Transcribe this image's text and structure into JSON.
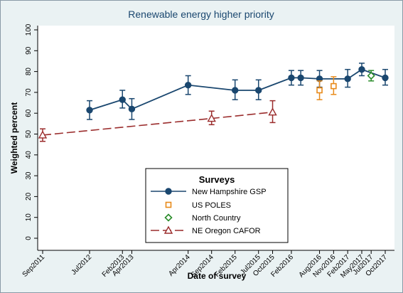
{
  "chart_data": {
    "type": "line",
    "title": "Renewable energy higher priority",
    "xlabel": "Date of survey",
    "ylabel": "Weighted percent",
    "ylim": [
      0,
      100
    ],
    "yticks": [
      0,
      10,
      20,
      30,
      40,
      50,
      60,
      70,
      80,
      90,
      100
    ],
    "x_range": [
      "2011-09",
      "2017-10"
    ],
    "xticks": [
      {
        "date": "2011-09",
        "label": "Sep2011"
      },
      {
        "date": "2012-07",
        "label": "Jul2012"
      },
      {
        "date": "2013-02",
        "label": "Feb2013"
      },
      {
        "date": "2013-04",
        "label": "Apr2013"
      },
      {
        "date": "2014-04",
        "label": "Apr2014"
      },
      {
        "date": "2014-09",
        "label": "Sep2014"
      },
      {
        "date": "2015-02",
        "label": "Feb2015"
      },
      {
        "date": "2015-07",
        "label": "Jul2015"
      },
      {
        "date": "2015-10",
        "label": "Oct2015"
      },
      {
        "date": "2016-02",
        "label": "Feb2016"
      },
      {
        "date": "2016-08",
        "label": "Aug2016"
      },
      {
        "date": "2016-11",
        "label": "Nov2016"
      },
      {
        "date": "2017-02",
        "label": "Feb2017"
      },
      {
        "date": "2017-05",
        "label": "May2017"
      },
      {
        "date": "2017-07",
        "label": "Jul2017"
      },
      {
        "date": "2017-10",
        "label": "Oct2017"
      }
    ],
    "grid": false,
    "legend_placement": "bottom-center",
    "legend_title": "Surveys",
    "series": [
      {
        "name": "New Hampshire GSP",
        "color": "#1a476f",
        "marker": "filled-circle",
        "line": "solid",
        "points": [
          {
            "x": "2012-07",
            "y": 61.5,
            "lo": 57,
            "hi": 66
          },
          {
            "x": "2013-02",
            "y": 66.5,
            "lo": 62.5,
            "hi": 71
          },
          {
            "x": "2013-04",
            "y": 62,
            "lo": 57,
            "hi": 67
          },
          {
            "x": "2014-04",
            "y": 73.5,
            "lo": 69,
            "hi": 78
          },
          {
            "x": "2015-02",
            "y": 71,
            "lo": 66.5,
            "hi": 76
          },
          {
            "x": "2015-07",
            "y": 71,
            "lo": 66.5,
            "hi": 76
          },
          {
            "x": "2016-02",
            "y": 77,
            "lo": 73.5,
            "hi": 80.5
          },
          {
            "x": "2016-04",
            "y": 77,
            "lo": 73.5,
            "hi": 80.5
          },
          {
            "x": "2016-08",
            "y": 76.5,
            "lo": 72.5,
            "hi": 80.5
          },
          {
            "x": "2017-02",
            "y": 76.5,
            "lo": 72.5,
            "hi": 81
          },
          {
            "x": "2017-05",
            "y": 81,
            "lo": 78,
            "hi": 84
          },
          {
            "x": "2017-10",
            "y": 77,
            "lo": 73.5,
            "hi": 81
          }
        ]
      },
      {
        "name": "US POLES",
        "color": "#e88a1a",
        "marker": "hollow-square",
        "line": "none",
        "points": [
          {
            "x": "2016-08",
            "y": 71,
            "lo": 66.5,
            "hi": 75.5
          },
          {
            "x": "2016-11",
            "y": 73,
            "lo": 69,
            "hi": 77.5
          }
        ]
      },
      {
        "name": "North Country",
        "color": "#2a8c2a",
        "marker": "hollow-diamond",
        "line": "none",
        "points": [
          {
            "x": "2017-07",
            "y": 78,
            "lo": 75.5,
            "hi": 80.5
          }
        ]
      },
      {
        "name": "NE Oregon CAFOR",
        "color": "#9b2d2d",
        "marker": "hollow-triangle",
        "line": "dashed",
        "points": [
          {
            "x": "2011-09",
            "y": 49.5,
            "lo": 46.5,
            "hi": 52.5
          },
          {
            "x": "2014-09",
            "y": 57.5,
            "lo": 54.5,
            "hi": 61
          },
          {
            "x": "2015-10",
            "y": 60.5,
            "lo": 55.5,
            "hi": 66
          }
        ]
      }
    ]
  }
}
